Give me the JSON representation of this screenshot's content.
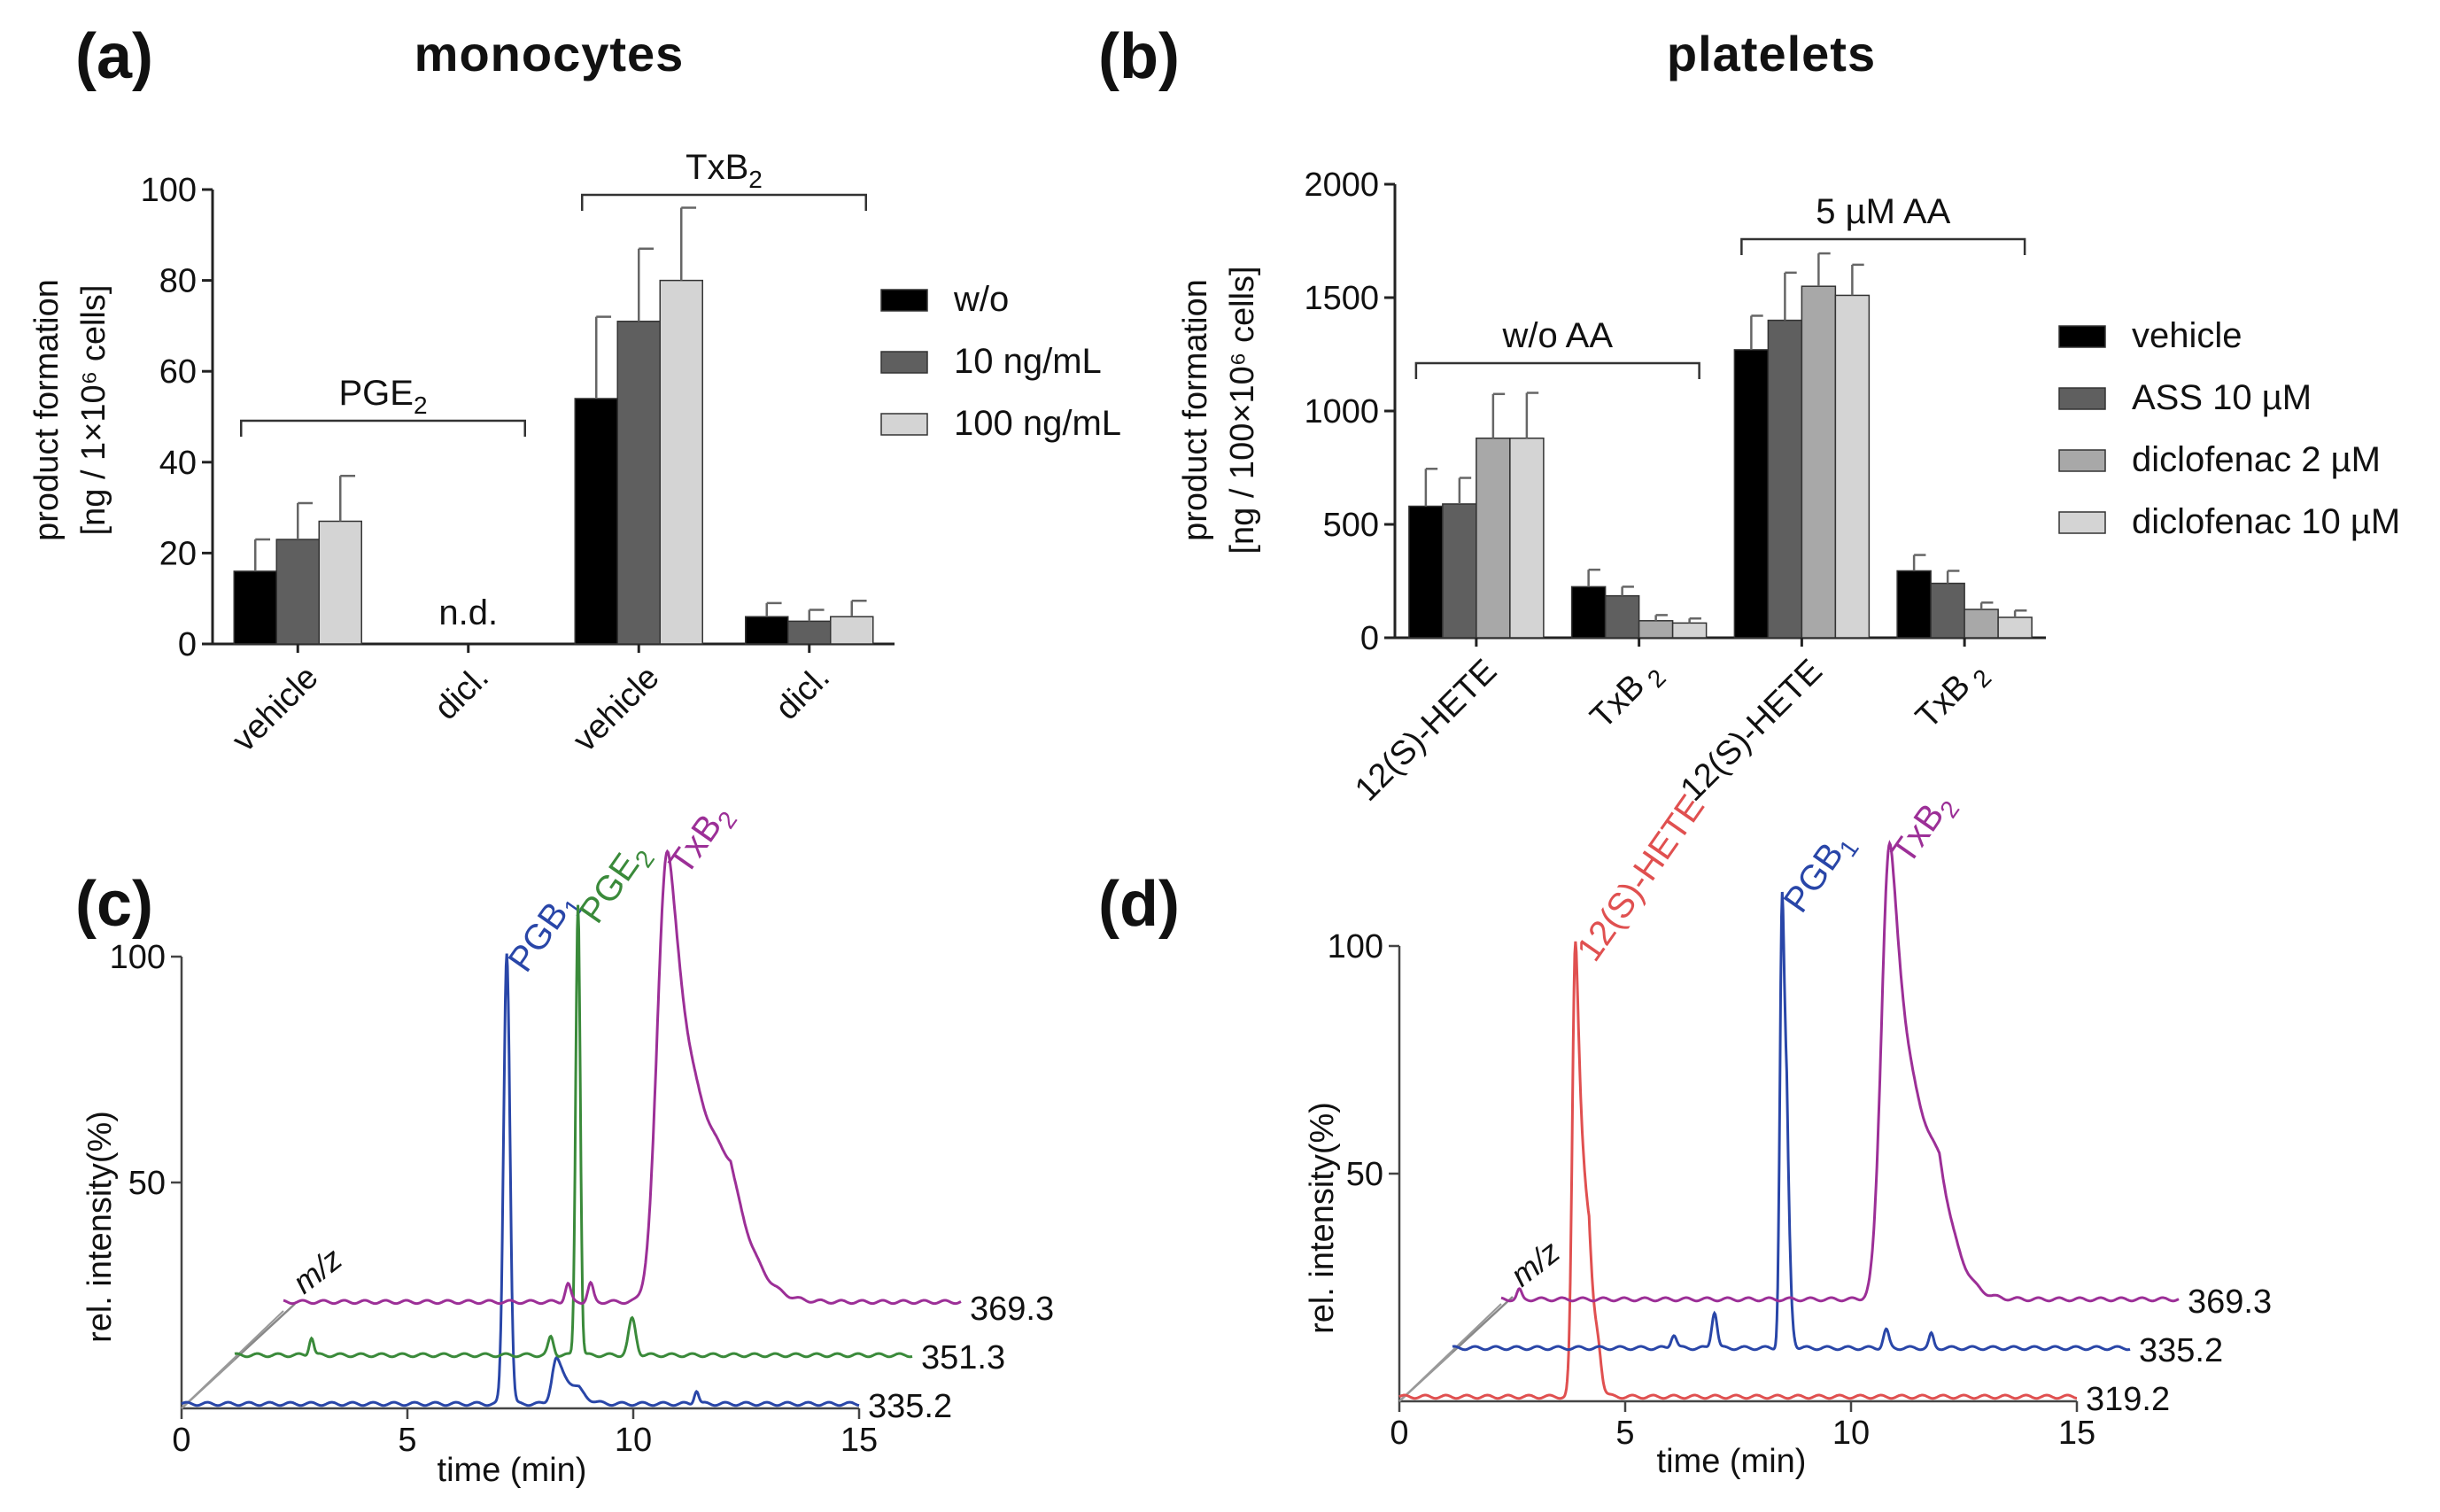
{
  "chart_data": [
    {
      "panel": "(a)",
      "type": "bar",
      "title": "monocytes",
      "ylabel": [
        "product formation",
        "[ng / 1×10⁶ cells]"
      ],
      "ylim": [
        0,
        100
      ],
      "yticks": [
        "0",
        "20",
        "40",
        "60",
        "80",
        "100"
      ],
      "categories": [
        "vehicle",
        "dicl.",
        "vehicle",
        "dicl."
      ],
      "series": [
        {
          "name": "w/o",
          "color": "#000000",
          "values": [
            16,
            null,
            54,
            6
          ],
          "errors": [
            7,
            null,
            18,
            3
          ]
        },
        {
          "name": "10 ng/mL",
          "color": "#5f5f5f",
          "values": [
            23,
            null,
            71,
            5
          ],
          "errors": [
            8,
            null,
            16,
            2.5
          ]
        },
        {
          "name": "100 ng/mL",
          "color": "#d4d4d4",
          "values": [
            27,
            null,
            80,
            6
          ],
          "errors": [
            10,
            null,
            16,
            3.5
          ]
        }
      ],
      "groups": [
        {
          "label": "PGE",
          "sub": "2",
          "from": 0,
          "to": 1
        },
        {
          "label": "TxB",
          "sub": "2",
          "from": 2,
          "to": 3
        }
      ],
      "annotations": [
        {
          "text": "n.d.",
          "category": 1
        }
      ]
    },
    {
      "panel": "(b)",
      "type": "bar",
      "title": "platelets",
      "ylabel": [
        "product formation",
        "[ng / 100×10⁶ cells]"
      ],
      "ylim": [
        0,
        2000
      ],
      "yticks": [
        "0",
        "500",
        "1000",
        "1500",
        "2000"
      ],
      "categories": [
        "12(S)-HETE",
        "TxB 2",
        "12(S)-HETE",
        "TxB 2"
      ],
      "series": [
        {
          "name": "vehicle",
          "color": "#000000",
          "values": [
            580,
            225,
            1270,
            295
          ],
          "errors": [
            165,
            75,
            150,
            70
          ]
        },
        {
          "name": "ASS 10 µM",
          "color": "#5f5f5f",
          "values": [
            590,
            185,
            1400,
            240
          ],
          "errors": [
            115,
            40,
            210,
            55
          ]
        },
        {
          "name": "diclofenac 2 µM",
          "color": "#a8a8a8",
          "values": [
            880,
            75,
            1550,
            125
          ],
          "errors": [
            195,
            25,
            145,
            30
          ]
        },
        {
          "name": "diclofenac 10 µM",
          "color": "#d4d4d4",
          "values": [
            880,
            65,
            1510,
            90
          ],
          "errors": [
            200,
            20,
            135,
            30
          ]
        }
      ],
      "groups": [
        {
          "label": "w/o AA",
          "from": 0,
          "to": 1
        },
        {
          "label": "5 µM  AA",
          "from": 2,
          "to": 3
        }
      ]
    },
    {
      "panel": "(c)",
      "type": "line",
      "xlabel": "time (min)",
      "ylabel": "rel. intensity(%)",
      "xlim": [
        0,
        15
      ],
      "xticks": [
        "0",
        "5",
        "10",
        "15"
      ],
      "ylim": [
        0,
        100
      ],
      "yticks": [
        "0",
        "50",
        "100"
      ],
      "depth_axis_label": "m/z",
      "traces": [
        {
          "mz": "335.2",
          "color": "#2946a8",
          "baseline": 1,
          "peaks": [
            {
              "label": "PGB",
              "sub": "1",
              "t": 7.2,
              "h": 100,
              "w": 0.07,
              "tail": 0
            },
            {
              "t": 8.3,
              "h": 10,
              "w": 0.1,
              "tail": 0.25
            },
            {
              "t": 11.4,
              "h": 3,
              "w": 0.05,
              "tail": 0
            }
          ]
        },
        {
          "mz": "351.3",
          "color": "#3a8a3a",
          "baseline": 1,
          "peaks": [
            {
              "label": "PGE",
              "sub": "2",
              "t": 7.6,
              "h": 100,
              "w": 0.05,
              "tail": 0
            },
            {
              "t": 1.7,
              "h": 4,
              "w": 0.05,
              "tail": 0
            },
            {
              "t": 7.0,
              "h": 4,
              "w": 0.06,
              "tail": 0
            },
            {
              "t": 8.8,
              "h": 8,
              "w": 0.08,
              "tail": 0
            }
          ]
        },
        {
          "mz": "369.3",
          "color": "#9c2f97",
          "baseline": 2,
          "peaks": [
            {
              "label": "TxB",
              "sub": "2",
              "t": 8.5,
              "h": 100,
              "w": 0.22,
              "tail": 0.7
            },
            {
              "t": 6.3,
              "h": 4,
              "w": 0.06,
              "tail": 0
            },
            {
              "t": 6.8,
              "h": 4,
              "w": 0.06,
              "tail": 0
            }
          ]
        }
      ]
    },
    {
      "panel": "(d)",
      "type": "line",
      "xlabel": "time (min)",
      "ylabel": "rel. intensity(%)",
      "xlim": [
        0,
        15
      ],
      "xticks": [
        "0",
        "5",
        "10",
        "15"
      ],
      "ylim": [
        0,
        100
      ],
      "yticks": [
        "0",
        "50",
        "100"
      ],
      "depth_axis_label": "m/z",
      "traces": [
        {
          "mz": "319.2",
          "color": "#e05050",
          "baseline": 1,
          "peaks": [
            {
              "label": "12(S)-HETE",
              "t": 3.9,
              "h": 100,
              "w": 0.07,
              "tail": 0.15
            },
            {
              "t": 4.4,
              "h": 6,
              "w": 0.07,
              "tail": 0
            }
          ]
        },
        {
          "mz": "335.2",
          "color": "#2946a8",
          "baseline": 1,
          "peaks": [
            {
              "label": "PGB",
              "sub": "1",
              "t": 7.3,
              "h": 100,
              "w": 0.05,
              "tail": 0.05
            },
            {
              "t": 4.9,
              "h": 3,
              "w": 0.06,
              "tail": 0
            },
            {
              "t": 5.8,
              "h": 8,
              "w": 0.06,
              "tail": 0
            },
            {
              "t": 9.6,
              "h": 4,
              "w": 0.06,
              "tail": 0
            },
            {
              "t": 10.6,
              "h": 3,
              "w": 0.05,
              "tail": 0
            }
          ]
        },
        {
          "mz": "369.3",
          "color": "#9c2f97",
          "baseline": 1,
          "peaks": [
            {
              "label": "TxB",
              "sub": "2",
              "t": 8.6,
              "h": 100,
              "w": 0.18,
              "tail": 0.55
            },
            {
              "t": 0.4,
              "h": 2,
              "w": 0.05,
              "tail": 0
            }
          ]
        }
      ]
    }
  ]
}
